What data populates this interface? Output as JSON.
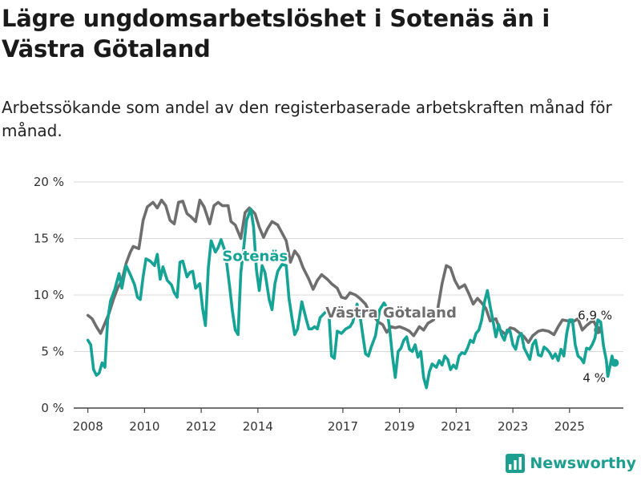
{
  "title": "Lägre ungdomsarbetslöshet i Sotenäs än i Västra Götaland",
  "subtitle": "Arbetssökande som andel av den registerbaserade arbetskraften månad för månad.",
  "brand": {
    "name": "Newsworthy",
    "color": "#1c9f8e",
    "icon": "newsworthy-bar-chart-icon"
  },
  "chart_data": {
    "type": "line",
    "xlabel": "",
    "ylabel": "",
    "xlim": [
      2007.5,
      2026.9
    ],
    "ylim": [
      0,
      20
    ],
    "grid": true,
    "legend": "inline labels",
    "y_ticks": [
      {
        "value": 0,
        "label": "0 %"
      },
      {
        "value": 5,
        "label": "5 %"
      },
      {
        "value": 10,
        "label": "10 %"
      },
      {
        "value": 15,
        "label": "15 %"
      },
      {
        "value": 20,
        "label": "20 %"
      }
    ],
    "x_ticks": [
      {
        "value": 2008,
        "label": "2008"
      },
      {
        "value": 2010,
        "label": "2010"
      },
      {
        "value": 2012,
        "label": "2012"
      },
      {
        "value": 2014,
        "label": "2014"
      },
      {
        "value": 2017,
        "label": "2017"
      },
      {
        "value": 2019,
        "label": "2019"
      },
      {
        "value": 2021,
        "label": "2021"
      },
      {
        "value": 2023,
        "label": "2023"
      },
      {
        "value": 2025,
        "label": "2025"
      }
    ],
    "series": [
      {
        "name": "Västra Götaland",
        "color": "#6e6e6e",
        "label_text": "Västra Götaland",
        "label_at": [
          2018.7,
          8.0
        ],
        "end_label": "6,9 %",
        "end_value": 6.9,
        "points": [
          [
            2008.0,
            8.2
          ],
          [
            2008.15,
            7.9
          ],
          [
            2008.3,
            7.2
          ],
          [
            2008.45,
            6.6
          ],
          [
            2008.6,
            7.5
          ],
          [
            2008.75,
            8.4
          ],
          [
            2008.9,
            9.6
          ],
          [
            2009.05,
            10.6
          ],
          [
            2009.2,
            11.3
          ],
          [
            2009.35,
            12.8
          ],
          [
            2009.5,
            13.8
          ],
          [
            2009.6,
            14.3
          ],
          [
            2009.8,
            14.1
          ],
          [
            2009.95,
            16.6
          ],
          [
            2010.1,
            17.8
          ],
          [
            2010.3,
            18.2
          ],
          [
            2010.45,
            17.7
          ],
          [
            2010.6,
            18.4
          ],
          [
            2010.75,
            17.9
          ],
          [
            2010.9,
            16.6
          ],
          [
            2011.05,
            16.3
          ],
          [
            2011.2,
            18.2
          ],
          [
            2011.35,
            18.3
          ],
          [
            2011.5,
            17.2
          ],
          [
            2011.65,
            16.9
          ],
          [
            2011.8,
            16.5
          ],
          [
            2011.95,
            18.4
          ],
          [
            2012.1,
            17.8
          ],
          [
            2012.3,
            16.3
          ],
          [
            2012.45,
            17.9
          ],
          [
            2012.6,
            18.2
          ],
          [
            2012.75,
            17.9
          ],
          [
            2012.95,
            17.9
          ],
          [
            2013.05,
            16.5
          ],
          [
            2013.2,
            16.2
          ],
          [
            2013.4,
            15.0
          ],
          [
            2013.55,
            17.3
          ],
          [
            2013.7,
            17.7
          ],
          [
            2013.9,
            17.2
          ],
          [
            2014.05,
            16.0
          ],
          [
            2014.2,
            15.1
          ],
          [
            2014.35,
            15.9
          ],
          [
            2014.5,
            16.5
          ],
          [
            2014.7,
            16.2
          ],
          [
            2014.85,
            15.5
          ],
          [
            2015.0,
            14.8
          ],
          [
            2015.15,
            12.9
          ],
          [
            2015.3,
            13.9
          ],
          [
            2015.45,
            13.4
          ],
          [
            2015.6,
            12.4
          ],
          [
            2015.8,
            11.4
          ],
          [
            2015.95,
            10.5
          ],
          [
            2016.1,
            11.3
          ],
          [
            2016.25,
            11.8
          ],
          [
            2016.45,
            11.4
          ],
          [
            2016.6,
            11.0
          ],
          [
            2016.8,
            10.6
          ],
          [
            2016.95,
            9.8
          ],
          [
            2017.1,
            9.7
          ],
          [
            2017.25,
            10.2
          ],
          [
            2017.45,
            10.0
          ],
          [
            2017.6,
            9.7
          ],
          [
            2017.8,
            9.2
          ],
          [
            2017.95,
            8.4
          ],
          [
            2018.1,
            8.1
          ],
          [
            2018.25,
            7.6
          ],
          [
            2018.4,
            7.4
          ],
          [
            2018.55,
            6.7
          ],
          [
            2018.7,
            7.2
          ],
          [
            2018.85,
            7.1
          ],
          [
            2019.0,
            7.2
          ],
          [
            2019.2,
            7.0
          ],
          [
            2019.35,
            6.8
          ],
          [
            2019.5,
            6.4
          ],
          [
            2019.7,
            7.2
          ],
          [
            2019.85,
            6.9
          ],
          [
            2020.0,
            7.5
          ],
          [
            2020.2,
            7.8
          ],
          [
            2020.35,
            8.8
          ],
          [
            2020.5,
            11.0
          ],
          [
            2020.65,
            12.6
          ],
          [
            2020.8,
            12.4
          ],
          [
            2020.95,
            11.3
          ],
          [
            2021.1,
            10.6
          ],
          [
            2021.3,
            10.9
          ],
          [
            2021.45,
            10.1
          ],
          [
            2021.6,
            9.2
          ],
          [
            2021.75,
            9.7
          ],
          [
            2021.9,
            9.3
          ],
          [
            2022.05,
            8.8
          ],
          [
            2022.2,
            7.7
          ],
          [
            2022.4,
            7.9
          ],
          [
            2022.55,
            6.9
          ],
          [
            2022.75,
            6.5
          ],
          [
            2022.9,
            7.1
          ],
          [
            2023.05,
            7.0
          ],
          [
            2023.25,
            6.6
          ],
          [
            2023.4,
            6.3
          ],
          [
            2023.55,
            5.8
          ],
          [
            2023.7,
            6.4
          ],
          [
            2023.9,
            6.8
          ],
          [
            2024.05,
            6.9
          ],
          [
            2024.25,
            6.8
          ],
          [
            2024.45,
            6.5
          ],
          [
            2024.6,
            7.2
          ],
          [
            2024.75,
            7.8
          ],
          [
            2024.95,
            7.7
          ],
          [
            2025.1,
            7.6
          ],
          [
            2025.3,
            7.9
          ],
          [
            2025.45,
            6.9
          ],
          [
            2025.6,
            7.3
          ],
          [
            2025.75,
            7.6
          ],
          [
            2025.85,
            7.7
          ],
          [
            2026.0,
            6.9
          ]
        ]
      },
      {
        "name": "Sotenäs",
        "color": "#14a395",
        "label_text": "Sotenäs",
        "label_at": [
          2013.9,
          13.0
        ],
        "end_label": "4 %",
        "end_value": 4.0,
        "points": [
          [
            2008.0,
            6.0
          ],
          [
            2008.1,
            5.6
          ],
          [
            2008.2,
            3.4
          ],
          [
            2008.3,
            2.9
          ],
          [
            2008.4,
            3.1
          ],
          [
            2008.5,
            4.0
          ],
          [
            2008.6,
            3.6
          ],
          [
            2008.7,
            7.8
          ],
          [
            2008.8,
            9.5
          ],
          [
            2008.95,
            10.5
          ],
          [
            2009.1,
            11.9
          ],
          [
            2009.2,
            10.6
          ],
          [
            2009.35,
            12.6
          ],
          [
            2009.5,
            11.8
          ],
          [
            2009.65,
            10.9
          ],
          [
            2009.75,
            9.8
          ],
          [
            2009.85,
            9.6
          ],
          [
            2009.95,
            11.6
          ],
          [
            2010.05,
            13.2
          ],
          [
            2010.2,
            13.0
          ],
          [
            2010.35,
            12.6
          ],
          [
            2010.45,
            13.6
          ],
          [
            2010.55,
            11.4
          ],
          [
            2010.65,
            12.5
          ],
          [
            2010.8,
            11.3
          ],
          [
            2010.95,
            10.9
          ],
          [
            2011.05,
            10.2
          ],
          [
            2011.15,
            9.8
          ],
          [
            2011.25,
            12.9
          ],
          [
            2011.35,
            13.0
          ],
          [
            2011.5,
            11.6
          ],
          [
            2011.6,
            12.0
          ],
          [
            2011.7,
            12.1
          ],
          [
            2011.8,
            10.6
          ],
          [
            2011.95,
            11.0
          ],
          [
            2012.05,
            8.8
          ],
          [
            2012.15,
            7.3
          ],
          [
            2012.25,
            12.4
          ],
          [
            2012.35,
            14.8
          ],
          [
            2012.5,
            13.8
          ],
          [
            2012.6,
            14.2
          ],
          [
            2012.7,
            14.9
          ],
          [
            2012.85,
            13.8
          ],
          [
            2013.0,
            10.8
          ],
          [
            2013.1,
            8.6
          ],
          [
            2013.2,
            6.9
          ],
          [
            2013.3,
            6.5
          ],
          [
            2013.4,
            12.0
          ],
          [
            2013.5,
            14.2
          ],
          [
            2013.6,
            16.6
          ],
          [
            2013.75,
            17.6
          ],
          [
            2013.85,
            16.0
          ],
          [
            2013.95,
            12.2
          ],
          [
            2014.05,
            10.4
          ],
          [
            2014.15,
            12.6
          ],
          [
            2014.25,
            12.0
          ],
          [
            2014.4,
            9.6
          ],
          [
            2014.5,
            8.7
          ],
          [
            2014.6,
            11.0
          ],
          [
            2014.7,
            12.1
          ],
          [
            2014.85,
            12.7
          ],
          [
            2015.0,
            12.6
          ],
          [
            2015.1,
            9.7
          ],
          [
            2015.2,
            8.0
          ],
          [
            2015.3,
            6.5
          ],
          [
            2015.4,
            7.0
          ],
          [
            2015.55,
            9.4
          ],
          [
            2015.7,
            7.9
          ],
          [
            2015.8,
            7.0
          ],
          [
            2015.9,
            7.0
          ],
          [
            2016.0,
            7.2
          ],
          [
            2016.1,
            7.0
          ],
          [
            2016.2,
            8.0
          ],
          [
            2016.35,
            8.4
          ],
          [
            2016.5,
            8.7
          ],
          [
            2016.6,
            4.6
          ],
          [
            2016.7,
            4.4
          ],
          [
            2016.8,
            6.8
          ],
          [
            2016.95,
            6.6
          ],
          [
            2017.1,
            7.0
          ],
          [
            2017.25,
            7.2
          ],
          [
            2017.35,
            7.6
          ],
          [
            2017.5,
            9.2
          ],
          [
            2017.6,
            8.3
          ],
          [
            2017.7,
            6.5
          ],
          [
            2017.8,
            4.8
          ],
          [
            2017.9,
            4.6
          ],
          [
            2018.0,
            5.4
          ],
          [
            2018.15,
            6.4
          ],
          [
            2018.3,
            8.7
          ],
          [
            2018.45,
            9.3
          ],
          [
            2018.55,
            8.9
          ],
          [
            2018.65,
            7.0
          ],
          [
            2018.75,
            4.6
          ],
          [
            2018.85,
            2.7
          ],
          [
            2018.95,
            5.0
          ],
          [
            2019.05,
            5.3
          ],
          [
            2019.15,
            6.0
          ],
          [
            2019.25,
            6.3
          ],
          [
            2019.35,
            5.2
          ],
          [
            2019.45,
            5.0
          ],
          [
            2019.55,
            5.6
          ],
          [
            2019.65,
            4.5
          ],
          [
            2019.75,
            5.0
          ],
          [
            2019.85,
            2.7
          ],
          [
            2019.95,
            1.8
          ],
          [
            2020.05,
            3.2
          ],
          [
            2020.15,
            3.9
          ],
          [
            2020.3,
            3.6
          ],
          [
            2020.4,
            4.2
          ],
          [
            2020.5,
            3.8
          ],
          [
            2020.6,
            4.6
          ],
          [
            2020.7,
            4.3
          ],
          [
            2020.8,
            3.4
          ],
          [
            2020.9,
            3.8
          ],
          [
            2021.0,
            3.5
          ],
          [
            2021.1,
            4.6
          ],
          [
            2021.2,
            4.9
          ],
          [
            2021.3,
            4.8
          ],
          [
            2021.4,
            5.3
          ],
          [
            2021.5,
            6.0
          ],
          [
            2021.6,
            5.8
          ],
          [
            2021.7,
            6.6
          ],
          [
            2021.8,
            6.9
          ],
          [
            2021.9,
            7.8
          ],
          [
            2022.0,
            9.4
          ],
          [
            2022.1,
            10.4
          ],
          [
            2022.2,
            9.0
          ],
          [
            2022.3,
            7.7
          ],
          [
            2022.4,
            6.3
          ],
          [
            2022.5,
            7.4
          ],
          [
            2022.6,
            6.5
          ],
          [
            2022.7,
            6.0
          ],
          [
            2022.8,
            6.9
          ],
          [
            2022.9,
            6.8
          ],
          [
            2023.0,
            5.6
          ],
          [
            2023.1,
            5.2
          ],
          [
            2023.2,
            6.3
          ],
          [
            2023.3,
            6.6
          ],
          [
            2023.4,
            5.3
          ],
          [
            2023.5,
            4.8
          ],
          [
            2023.6,
            4.3
          ],
          [
            2023.7,
            5.6
          ],
          [
            2023.8,
            6.0
          ],
          [
            2023.9,
            4.7
          ],
          [
            2024.0,
            4.6
          ],
          [
            2024.1,
            5.4
          ],
          [
            2024.2,
            5.2
          ],
          [
            2024.3,
            4.9
          ],
          [
            2024.4,
            4.4
          ],
          [
            2024.5,
            4.8
          ],
          [
            2024.6,
            4.2
          ],
          [
            2024.7,
            5.2
          ],
          [
            2024.8,
            4.6
          ],
          [
            2024.9,
            6.6
          ],
          [
            2025.0,
            7.8
          ],
          [
            2025.1,
            7.8
          ],
          [
            2025.2,
            5.6
          ],
          [
            2025.3,
            4.6
          ],
          [
            2025.4,
            4.4
          ],
          [
            2025.5,
            4.0
          ],
          [
            2025.6,
            5.3
          ],
          [
            2025.7,
            5.2
          ],
          [
            2025.8,
            5.6
          ],
          [
            2025.9,
            6.2
          ],
          [
            2026.0,
            7.8
          ],
          [
            2026.1,
            7.6
          ],
          [
            2026.2,
            5.5
          ],
          [
            2026.3,
            4.2
          ],
          [
            2026.35,
            2.8
          ],
          [
            2026.5,
            4.6
          ],
          [
            2026.55,
            4.0
          ],
          [
            2026.6,
            4.0
          ]
        ]
      }
    ]
  }
}
